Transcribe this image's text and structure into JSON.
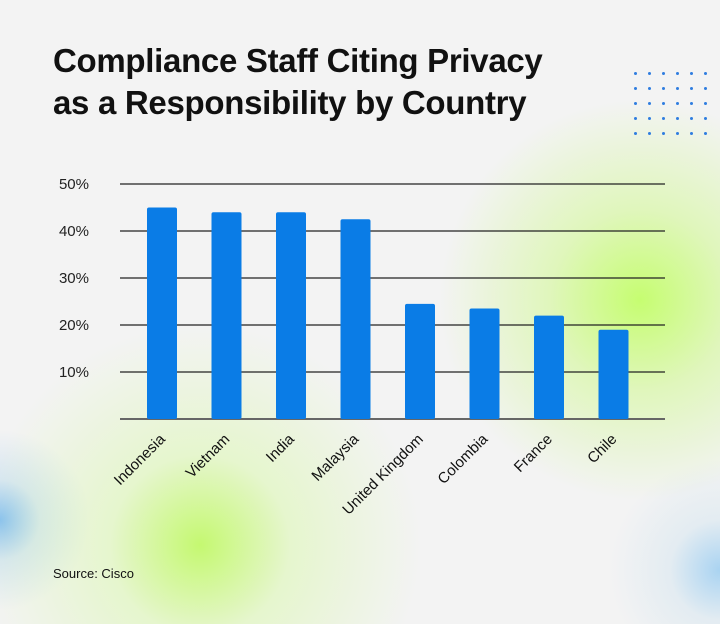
{
  "chart_data": {
    "type": "bar",
    "title": "Compliance Staff Citing Privacy as a Responsibility by Country",
    "title_lines": [
      "Compliance Staff Citing Privacy",
      "as a Responsibility by Country"
    ],
    "categories": [
      "Indonesia",
      "Vietnam",
      "India",
      "Malaysia",
      "United Kingdom",
      "Colombia",
      "France",
      "Chile"
    ],
    "values": [
      45,
      44,
      44,
      42.5,
      24.5,
      23.5,
      22,
      19
    ],
    "yticks": [
      10,
      20,
      30,
      40,
      50
    ],
    "ytick_labels": [
      "10%",
      "20%",
      "30%",
      "40%",
      "50%"
    ],
    "ylim": [
      0,
      50
    ],
    "xlabel": "",
    "ylabel": "",
    "grid": true,
    "bar_color": "#0a7ce6"
  },
  "source": "Source: Cisco"
}
